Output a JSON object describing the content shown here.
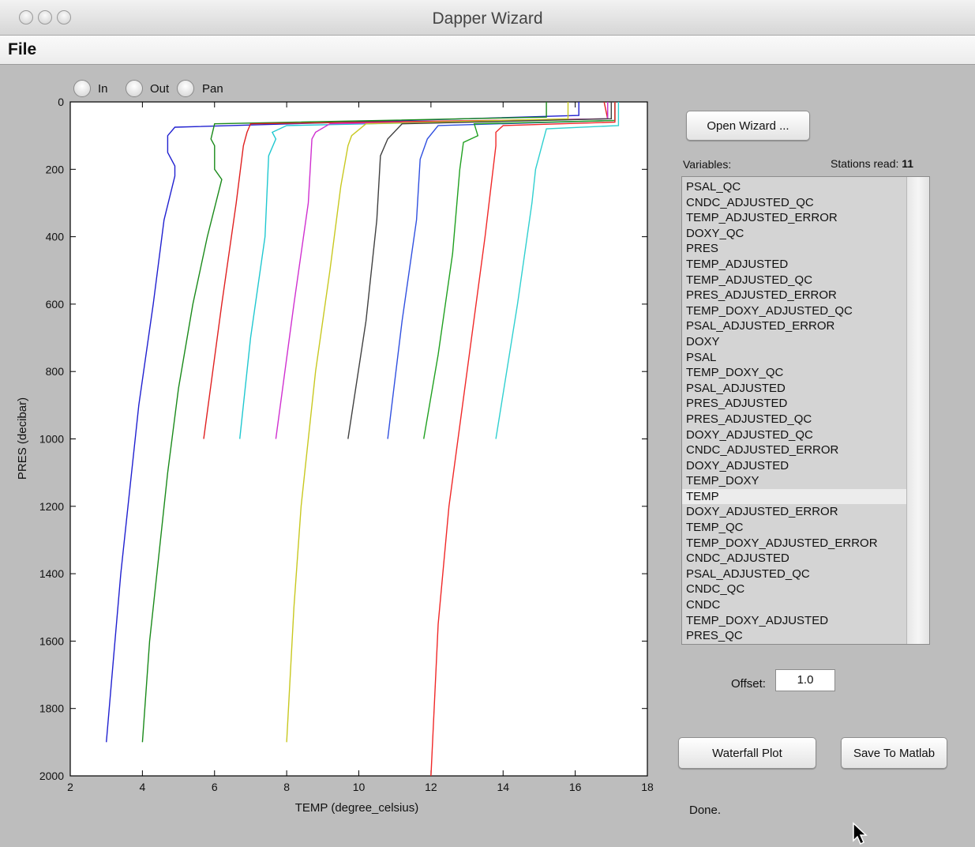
{
  "window": {
    "title": "Dapper Wizard"
  },
  "menubar": {
    "file": "File"
  },
  "zoom_controls": {
    "in": "In",
    "out": "Out",
    "pan": "Pan"
  },
  "open_wizard_label": "Open Wizard ...",
  "variables_label": "Variables:",
  "stations_read_label": "Stations read:",
  "stations_read_value": "11",
  "variables": [
    "PSAL_QC",
    "CNDC_ADJUSTED_QC",
    "TEMP_ADJUSTED_ERROR",
    "DOXY_QC",
    "PRES",
    "TEMP_ADJUSTED",
    "TEMP_ADJUSTED_QC",
    "PRES_ADJUSTED_ERROR",
    "TEMP_DOXY_ADJUSTED_QC",
    "PSAL_ADJUSTED_ERROR",
    "DOXY",
    "PSAL",
    "TEMP_DOXY_QC",
    "PSAL_ADJUSTED",
    "PRES_ADJUSTED",
    "PRES_ADJUSTED_QC",
    "DOXY_ADJUSTED_QC",
    "CNDC_ADJUSTED_ERROR",
    "DOXY_ADJUSTED",
    "TEMP_DOXY",
    "TEMP",
    "DOXY_ADJUSTED_ERROR",
    "TEMP_QC",
    "TEMP_DOXY_ADJUSTED_ERROR",
    "CNDC_ADJUSTED",
    "PSAL_ADJUSTED_QC",
    "CNDC_QC",
    "CNDC",
    "TEMP_DOXY_ADJUSTED",
    "PRES_QC"
  ],
  "selected_variable": "TEMP",
  "offset": {
    "label": "Offset:",
    "value": "1.0"
  },
  "buttons": {
    "waterfall": "Waterfall Plot",
    "save": "Save To Matlab"
  },
  "status": "Done.",
  "chart_data": {
    "type": "line",
    "xlabel": "TEMP (degree_celsius)",
    "ylabel": "PRES (decibar)",
    "xlim": [
      2,
      18
    ],
    "ylim": [
      2000,
      0
    ],
    "y_reversed": true,
    "xticks": [
      2,
      4,
      6,
      8,
      10,
      12,
      14,
      16,
      18
    ],
    "yticks": [
      0,
      200,
      400,
      600,
      800,
      1000,
      1200,
      1400,
      1600,
      1800,
      2000
    ],
    "grid": false,
    "series": [
      {
        "color": "#2020d0",
        "points": [
          [
            16.1,
            0
          ],
          [
            16.1,
            40
          ],
          [
            4.9,
            75
          ],
          [
            4.7,
            100
          ],
          [
            4.7,
            150
          ],
          [
            4.9,
            190
          ],
          [
            4.9,
            220
          ],
          [
            4.6,
            350
          ],
          [
            4.3,
            600
          ],
          [
            3.9,
            900
          ],
          [
            3.6,
            1200
          ],
          [
            3.4,
            1400
          ],
          [
            3.2,
            1650
          ],
          [
            3.0,
            1900
          ]
        ]
      },
      {
        "color": "#1a8a1a",
        "points": [
          [
            15.2,
            0
          ],
          [
            15.2,
            45
          ],
          [
            6.0,
            65
          ],
          [
            5.9,
            110
          ],
          [
            6.0,
            130
          ],
          [
            6.0,
            200
          ],
          [
            6.2,
            230
          ],
          [
            5.8,
            400
          ],
          [
            5.4,
            600
          ],
          [
            5.0,
            850
          ],
          [
            4.7,
            1100
          ],
          [
            4.4,
            1400
          ],
          [
            4.2,
            1600
          ],
          [
            4.0,
            1900
          ]
        ]
      },
      {
        "color": "#e02020",
        "points": [
          [
            16.8,
            0
          ],
          [
            16.9,
            50
          ],
          [
            7.0,
            65
          ],
          [
            6.9,
            90
          ],
          [
            6.8,
            130
          ],
          [
            6.6,
            300
          ],
          [
            6.2,
            600
          ],
          [
            5.7,
            1000
          ]
        ]
      },
      {
        "color": "#20c8d0",
        "points": [
          [
            16.9,
            0
          ],
          [
            16.9,
            50
          ],
          [
            8.0,
            70
          ],
          [
            7.6,
            90
          ],
          [
            7.7,
            110
          ],
          [
            7.5,
            160
          ],
          [
            7.4,
            400
          ],
          [
            7.0,
            700
          ],
          [
            6.7,
            1000
          ]
        ]
      },
      {
        "color": "#d030d0",
        "points": [
          [
            16.9,
            0
          ],
          [
            16.9,
            50
          ],
          [
            9.2,
            65
          ],
          [
            8.8,
            90
          ],
          [
            8.7,
            110
          ],
          [
            8.6,
            300
          ],
          [
            8.2,
            600
          ],
          [
            7.7,
            1000
          ]
        ]
      },
      {
        "color": "#c8c820",
        "points": [
          [
            15.8,
            0
          ],
          [
            15.8,
            50
          ],
          [
            10.2,
            65
          ],
          [
            9.8,
            100
          ],
          [
            9.7,
            130
          ],
          [
            9.5,
            250
          ],
          [
            9.2,
            500
          ],
          [
            8.8,
            800
          ],
          [
            8.4,
            1200
          ],
          [
            8.2,
            1500
          ],
          [
            8.0,
            1900
          ]
        ]
      },
      {
        "color": "#404040",
        "points": [
          [
            17.0,
            0
          ],
          [
            17.0,
            50
          ],
          [
            11.2,
            65
          ],
          [
            10.8,
            110
          ],
          [
            10.6,
            160
          ],
          [
            10.5,
            350
          ],
          [
            10.2,
            650
          ],
          [
            9.7,
            1000
          ]
        ]
      },
      {
        "color": "#3050e0",
        "points": [
          [
            17.1,
            0
          ],
          [
            17.1,
            55
          ],
          [
            12.2,
            70
          ],
          [
            11.9,
            110
          ],
          [
            11.7,
            170
          ],
          [
            11.6,
            350
          ],
          [
            11.2,
            650
          ],
          [
            10.8,
            1000
          ]
        ]
      },
      {
        "color": "#20a020",
        "points": [
          [
            17.1,
            0
          ],
          [
            17.1,
            55
          ],
          [
            13.2,
            65
          ],
          [
            13.3,
            100
          ],
          [
            12.9,
            120
          ],
          [
            12.8,
            200
          ],
          [
            12.6,
            450
          ],
          [
            12.2,
            750
          ],
          [
            11.8,
            1000
          ]
        ]
      },
      {
        "color": "#f02828",
        "points": [
          [
            17.1,
            0
          ],
          [
            17.1,
            60
          ],
          [
            14.0,
            70
          ],
          [
            13.8,
            90
          ],
          [
            13.8,
            130
          ],
          [
            13.5,
            400
          ],
          [
            13.0,
            800
          ],
          [
            12.5,
            1200
          ],
          [
            12.2,
            1550
          ],
          [
            12.0,
            2000
          ]
        ]
      },
      {
        "color": "#30d0d0",
        "points": [
          [
            17.2,
            0
          ],
          [
            17.2,
            70
          ],
          [
            15.2,
            80
          ],
          [
            15.1,
            120
          ],
          [
            14.9,
            200
          ],
          [
            14.8,
            300
          ],
          [
            14.4,
            600
          ],
          [
            13.8,
            1000
          ]
        ]
      }
    ]
  }
}
